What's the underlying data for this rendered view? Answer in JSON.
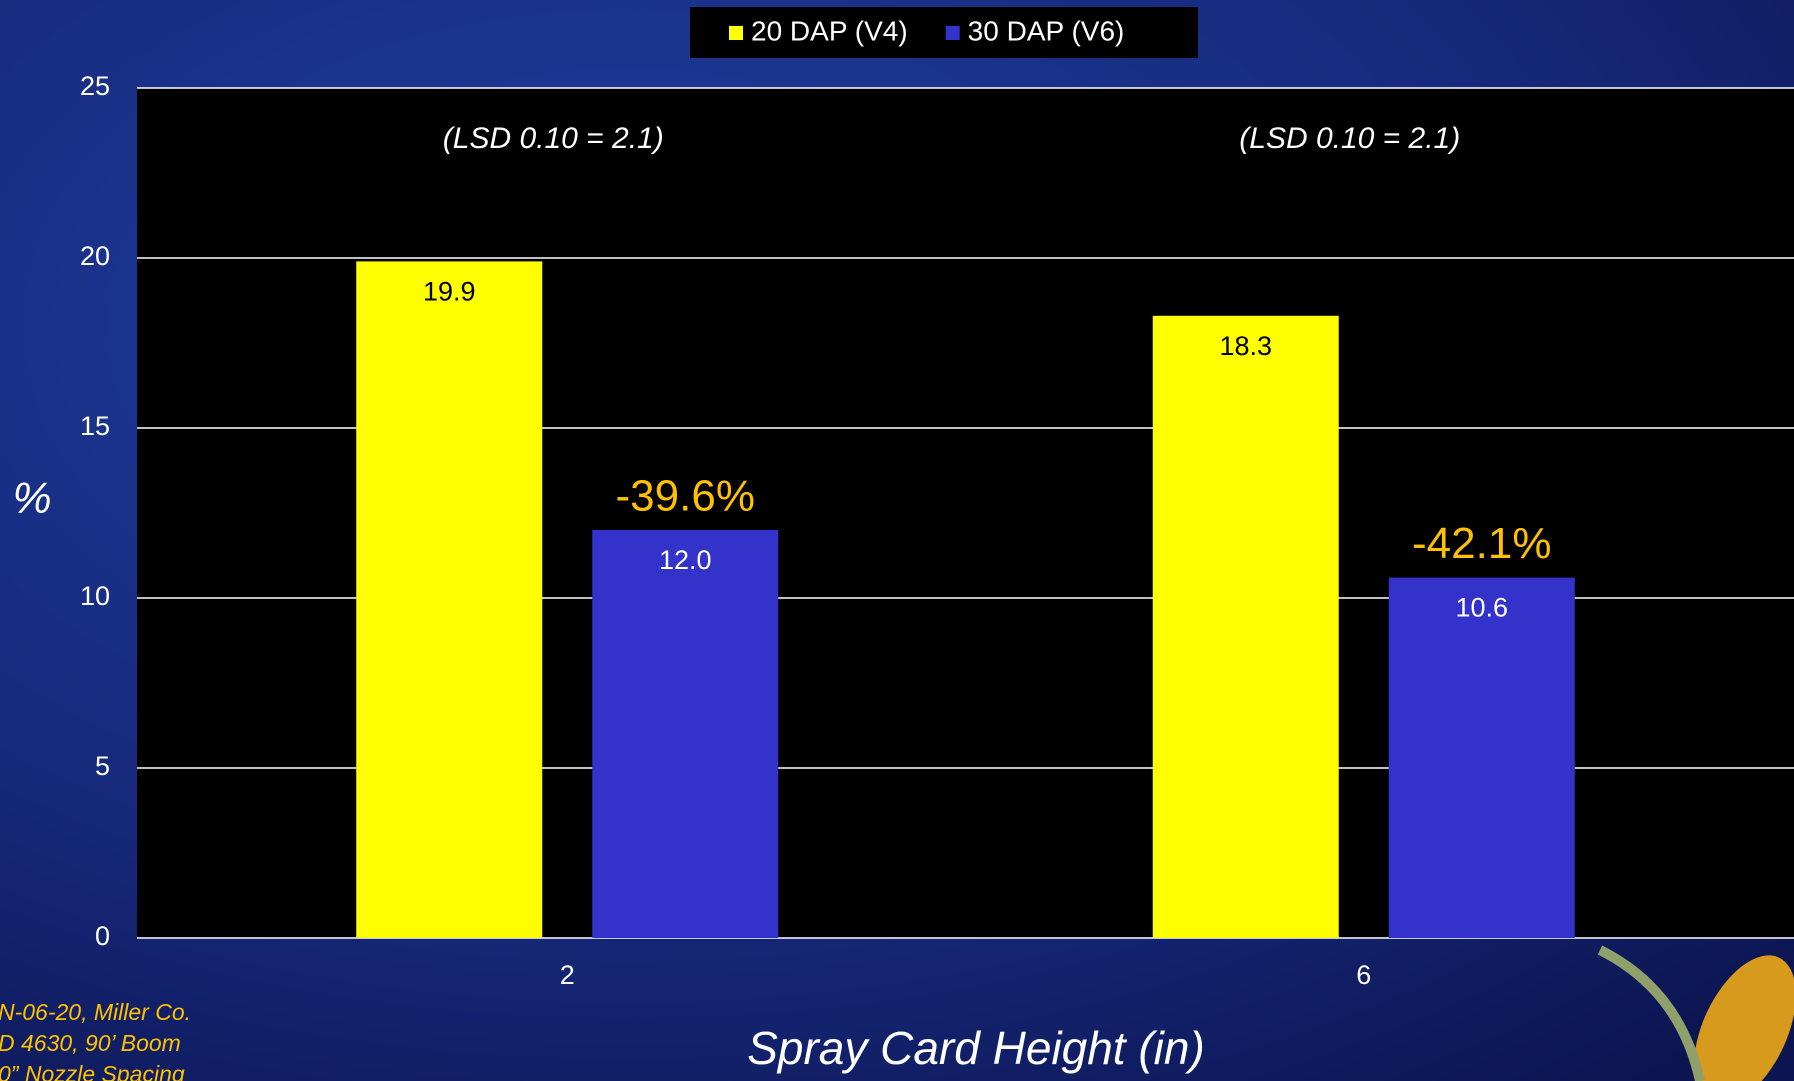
{
  "chart_data": {
    "type": "bar",
    "x_label": "Spray Card Height (in)",
    "y_label": "%",
    "categories": [
      "2",
      "6"
    ],
    "series": [
      {
        "name": "20 DAP (V4)",
        "color": "#ffff00",
        "values": [
          19.9,
          18.3
        ]
      },
      {
        "name": "30 DAP (V6)",
        "color": "#3333cc",
        "values": [
          12.0,
          10.6
        ],
        "value_labels": [
          "12.0",
          "10.6"
        ]
      }
    ],
    "annotations": [
      "(LSD 0.10 = 2.1)",
      "(LSD 0.10 = 2.1)"
    ],
    "change_labels": [
      "-39.6%",
      "-42.1%"
    ],
    "notes": [
      "N-06-20, Miller Co.",
      "D 4630, 90’ Boom",
      "0” Nozzle Spacing"
    ],
    "ylim": [
      0,
      25
    ],
    "yticks": [
      0,
      5,
      10,
      15,
      20,
      25
    ],
    "grid": true,
    "legend": "top"
  }
}
